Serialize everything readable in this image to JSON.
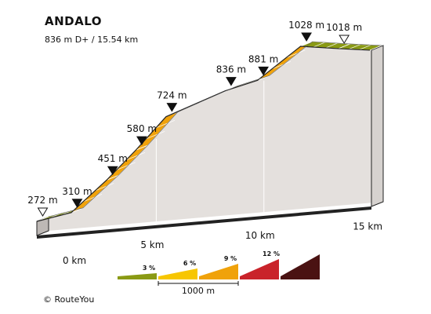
{
  "header": {
    "title": "ANDALO",
    "subtitle": "836 m D+ / 15.54 km"
  },
  "footer": {
    "credit": "© RouteYou"
  },
  "colors": {
    "green": "#8a9a14",
    "yellow": "#f7c600",
    "orange": "#f0a20a",
    "red": "#c9232a",
    "darkred": "#4a1212",
    "side": "#e4e0dd",
    "front": "#bdb8b5"
  },
  "chart_data": {
    "type": "area",
    "title": "ANDALO",
    "subtitle": "836 m D+ / 15.54 km",
    "x_unit": "km",
    "y_unit": "m",
    "start_elevation_label": "272 m",
    "end_elevation_label": "1018 m",
    "markers": [
      {
        "x": 0,
        "y": 272,
        "label": "272 m",
        "kind": "start"
      },
      {
        "x": 1.6,
        "y": 310,
        "label": "310 m",
        "kind": "checkpoint"
      },
      {
        "x": 3.25,
        "y": 451,
        "label": "451 m",
        "kind": "checkpoint"
      },
      {
        "x": 4.6,
        "y": 580,
        "label": "580 m",
        "kind": "checkpoint"
      },
      {
        "x": 6.0,
        "y": 724,
        "label": "724 m",
        "kind": "checkpoint"
      },
      {
        "x": 8.75,
        "y": 836,
        "label": "836 m",
        "kind": "checkpoint"
      },
      {
        "x": 10.25,
        "y": 881,
        "label": "881 m",
        "kind": "checkpoint"
      },
      {
        "x": 12.25,
        "y": 1028,
        "label": "1028 m",
        "kind": "checkpoint"
      },
      {
        "x": 14.0,
        "y": 1018,
        "label": "1018 m",
        "kind": "end"
      }
    ],
    "segments": [
      {
        "from": 0,
        "to": 1.6,
        "grade": "3 %"
      },
      {
        "from": 1.6,
        "to": 3.25,
        "grade": "6 %"
      },
      {
        "from": 3.25,
        "to": 4.6,
        "grade": "6 %"
      },
      {
        "from": 4.6,
        "to": 6.0,
        "grade": "6 %"
      },
      {
        "from": 6.0,
        "to": 7.45,
        "grade": "6 %"
      },
      {
        "from": 7.45,
        "to": 8.75,
        "grade": "3 %"
      },
      {
        "from": 8.75,
        "to": 10.25,
        "grade": "3 %"
      },
      {
        "from": 10.25,
        "to": 12.25,
        "grade": "6 %"
      },
      {
        "from": 12.25,
        "to": 14.0,
        "grade": "3 %"
      },
      {
        "from": 14.0,
        "to": 15.54,
        "grade": "3 %"
      }
    ],
    "x_ticks": [
      {
        "value": 0,
        "label": "0 km"
      },
      {
        "value": 5,
        "label": "5 km"
      },
      {
        "value": 10,
        "label": "10 km"
      },
      {
        "value": 15,
        "label": "15 km"
      }
    ],
    "legend": {
      "scale_label": "1000 m",
      "items": [
        {
          "label": "3 %",
          "color": "#8a9a14"
        },
        {
          "label": "6 %",
          "color": "#f7c600"
        },
        {
          "label": "9 %",
          "color": "#f0a20a"
        },
        {
          "label": "12 %",
          "color": "#c9232a"
        },
        {
          "label": "",
          "color": "#4a1212"
        }
      ]
    }
  }
}
